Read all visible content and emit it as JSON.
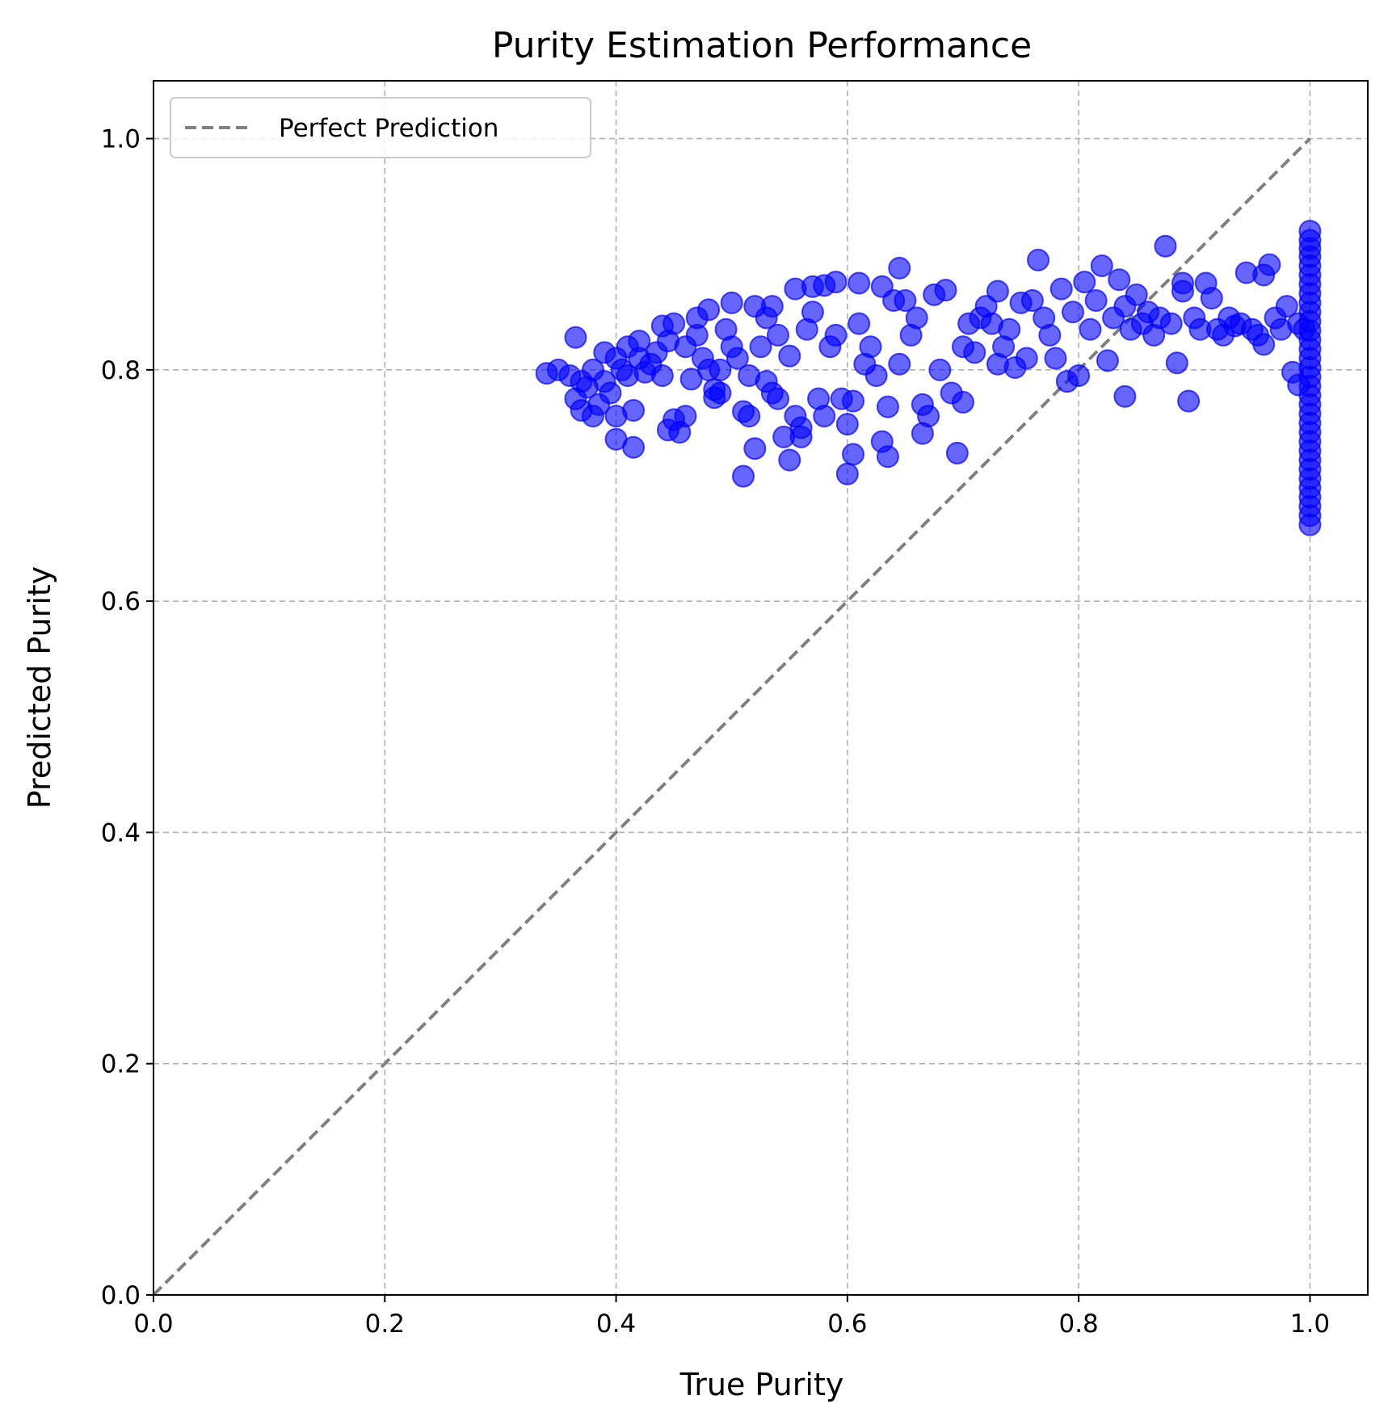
{
  "chart_data": {
    "type": "scatter",
    "title": "Purity Estimation Performance",
    "xlabel": "True Purity",
    "ylabel": "Predicted Purity",
    "xlim": [
      0.0,
      1.05
    ],
    "ylim": [
      0.0,
      1.05
    ],
    "xticks": [
      "0.0",
      "0.2",
      "0.4",
      "0.6",
      "0.8",
      "1.0"
    ],
    "yticks": [
      "0.0",
      "0.2",
      "0.4",
      "0.6",
      "0.8",
      "1.0"
    ],
    "grid": true,
    "legend_position": "top-left",
    "reference_line": {
      "name": "Perfect Prediction",
      "from": [
        0,
        0
      ],
      "to": [
        1,
        1
      ],
      "color": "#808080",
      "style": "dashed"
    },
    "point_color": "#0000ff",
    "point_alpha": 0.6,
    "points": [
      [
        0.34,
        0.797
      ],
      [
        0.35,
        0.8
      ],
      [
        0.36,
        0.795
      ],
      [
        0.365,
        0.828
      ],
      [
        0.365,
        0.775
      ],
      [
        0.37,
        0.765
      ],
      [
        0.37,
        0.79
      ],
      [
        0.375,
        0.785
      ],
      [
        0.38,
        0.8
      ],
      [
        0.38,
        0.76
      ],
      [
        0.385,
        0.77
      ],
      [
        0.39,
        0.79
      ],
      [
        0.39,
        0.815
      ],
      [
        0.395,
        0.78
      ],
      [
        0.4,
        0.81
      ],
      [
        0.4,
        0.76
      ],
      [
        0.4,
        0.74
      ],
      [
        0.405,
        0.8
      ],
      [
        0.41,
        0.82
      ],
      [
        0.41,
        0.795
      ],
      [
        0.415,
        0.765
      ],
      [
        0.415,
        0.733
      ],
      [
        0.42,
        0.81
      ],
      [
        0.42,
        0.825
      ],
      [
        0.425,
        0.798
      ],
      [
        0.43,
        0.805
      ],
      [
        0.435,
        0.815
      ],
      [
        0.44,
        0.795
      ],
      [
        0.44,
        0.838
      ],
      [
        0.445,
        0.748
      ],
      [
        0.445,
        0.825
      ],
      [
        0.45,
        0.84
      ],
      [
        0.45,
        0.757
      ],
      [
        0.455,
        0.746
      ],
      [
        0.46,
        0.76
      ],
      [
        0.46,
        0.82
      ],
      [
        0.465,
        0.792
      ],
      [
        0.47,
        0.83
      ],
      [
        0.47,
        0.845
      ],
      [
        0.475,
        0.81
      ],
      [
        0.48,
        0.852
      ],
      [
        0.48,
        0.8
      ],
      [
        0.485,
        0.783
      ],
      [
        0.485,
        0.776
      ],
      [
        0.49,
        0.8
      ],
      [
        0.49,
        0.78
      ],
      [
        0.495,
        0.835
      ],
      [
        0.5,
        0.858
      ],
      [
        0.5,
        0.82
      ],
      [
        0.505,
        0.81
      ],
      [
        0.51,
        0.764
      ],
      [
        0.51,
        0.708
      ],
      [
        0.515,
        0.76
      ],
      [
        0.515,
        0.795
      ],
      [
        0.52,
        0.855
      ],
      [
        0.52,
        0.732
      ],
      [
        0.525,
        0.82
      ],
      [
        0.53,
        0.845
      ],
      [
        0.53,
        0.79
      ],
      [
        0.535,
        0.855
      ],
      [
        0.535,
        0.78
      ],
      [
        0.54,
        0.83
      ],
      [
        0.54,
        0.775
      ],
      [
        0.545,
        0.742
      ],
      [
        0.55,
        0.722
      ],
      [
        0.55,
        0.812
      ],
      [
        0.555,
        0.87
      ],
      [
        0.555,
        0.76
      ],
      [
        0.56,
        0.742
      ],
      [
        0.56,
        0.75
      ],
      [
        0.565,
        0.835
      ],
      [
        0.57,
        0.85
      ],
      [
        0.57,
        0.872
      ],
      [
        0.575,
        0.775
      ],
      [
        0.58,
        0.76
      ],
      [
        0.58,
        0.873
      ],
      [
        0.585,
        0.82
      ],
      [
        0.59,
        0.83
      ],
      [
        0.59,
        0.876
      ],
      [
        0.595,
        0.775
      ],
      [
        0.6,
        0.753
      ],
      [
        0.6,
        0.71
      ],
      [
        0.605,
        0.727
      ],
      [
        0.605,
        0.773
      ],
      [
        0.61,
        0.875
      ],
      [
        0.61,
        0.84
      ],
      [
        0.615,
        0.805
      ],
      [
        0.62,
        0.82
      ],
      [
        0.625,
        0.795
      ],
      [
        0.63,
        0.738
      ],
      [
        0.63,
        0.872
      ],
      [
        0.635,
        0.725
      ],
      [
        0.635,
        0.768
      ],
      [
        0.64,
        0.86
      ],
      [
        0.645,
        0.888
      ],
      [
        0.645,
        0.805
      ],
      [
        0.65,
        0.86
      ],
      [
        0.655,
        0.83
      ],
      [
        0.66,
        0.845
      ],
      [
        0.665,
        0.77
      ],
      [
        0.665,
        0.745
      ],
      [
        0.67,
        0.76
      ],
      [
        0.675,
        0.865
      ],
      [
        0.68,
        0.8
      ],
      [
        0.685,
        0.869
      ],
      [
        0.69,
        0.78
      ],
      [
        0.695,
        0.728
      ],
      [
        0.7,
        0.772
      ],
      [
        0.7,
        0.82
      ],
      [
        0.705,
        0.84
      ],
      [
        0.71,
        0.815
      ],
      [
        0.715,
        0.845
      ],
      [
        0.72,
        0.855
      ],
      [
        0.725,
        0.84
      ],
      [
        0.73,
        0.868
      ],
      [
        0.73,
        0.805
      ],
      [
        0.735,
        0.82
      ],
      [
        0.74,
        0.835
      ],
      [
        0.745,
        0.802
      ],
      [
        0.75,
        0.858
      ],
      [
        0.755,
        0.81
      ],
      [
        0.76,
        0.86
      ],
      [
        0.765,
        0.895
      ],
      [
        0.77,
        0.845
      ],
      [
        0.775,
        0.83
      ],
      [
        0.78,
        0.81
      ],
      [
        0.785,
        0.87
      ],
      [
        0.79,
        0.79
      ],
      [
        0.795,
        0.85
      ],
      [
        0.8,
        0.795
      ],
      [
        0.805,
        0.876
      ],
      [
        0.81,
        0.835
      ],
      [
        0.815,
        0.86
      ],
      [
        0.82,
        0.89
      ],
      [
        0.825,
        0.808
      ],
      [
        0.83,
        0.845
      ],
      [
        0.835,
        0.878
      ],
      [
        0.84,
        0.777
      ],
      [
        0.84,
        0.855
      ],
      [
        0.845,
        0.835
      ],
      [
        0.85,
        0.865
      ],
      [
        0.855,
        0.84
      ],
      [
        0.86,
        0.85
      ],
      [
        0.865,
        0.83
      ],
      [
        0.87,
        0.845
      ],
      [
        0.875,
        0.907
      ],
      [
        0.88,
        0.84
      ],
      [
        0.885,
        0.806
      ],
      [
        0.89,
        0.868
      ],
      [
        0.89,
        0.875
      ],
      [
        0.895,
        0.773
      ],
      [
        0.9,
        0.845
      ],
      [
        0.905,
        0.835
      ],
      [
        0.91,
        0.875
      ],
      [
        0.915,
        0.862
      ],
      [
        0.92,
        0.835
      ],
      [
        0.925,
        0.83
      ],
      [
        0.93,
        0.845
      ],
      [
        0.935,
        0.838
      ],
      [
        0.94,
        0.84
      ],
      [
        0.945,
        0.884
      ],
      [
        0.95,
        0.835
      ],
      [
        0.955,
        0.83
      ],
      [
        0.96,
        0.822
      ],
      [
        0.96,
        0.882
      ],
      [
        0.965,
        0.891
      ],
      [
        0.97,
        0.845
      ],
      [
        0.975,
        0.835
      ],
      [
        0.98,
        0.855
      ],
      [
        0.985,
        0.798
      ],
      [
        0.99,
        0.787
      ],
      [
        0.99,
        0.84
      ],
      [
        0.995,
        0.835
      ],
      [
        1.0,
        0.92
      ],
      [
        1.0,
        0.912
      ],
      [
        1.0,
        0.905
      ],
      [
        1.0,
        0.898
      ],
      [
        1.0,
        0.89
      ],
      [
        1.0,
        0.882
      ],
      [
        1.0,
        0.874
      ],
      [
        1.0,
        0.866
      ],
      [
        1.0,
        0.858
      ],
      [
        1.0,
        0.85
      ],
      [
        1.0,
        0.842
      ],
      [
        1.0,
        0.834
      ],
      [
        1.0,
        0.826
      ],
      [
        1.0,
        0.818
      ],
      [
        1.0,
        0.81
      ],
      [
        1.0,
        0.802
      ],
      [
        1.0,
        0.794
      ],
      [
        1.0,
        0.786
      ],
      [
        1.0,
        0.778
      ],
      [
        1.0,
        0.77
      ],
      [
        1.0,
        0.762
      ],
      [
        1.0,
        0.754
      ],
      [
        1.0,
        0.746
      ],
      [
        1.0,
        0.738
      ],
      [
        1.0,
        0.73
      ],
      [
        1.0,
        0.722
      ],
      [
        1.0,
        0.714
      ],
      [
        1.0,
        0.706
      ],
      [
        1.0,
        0.698
      ],
      [
        1.0,
        0.69
      ],
      [
        1.0,
        0.682
      ],
      [
        1.0,
        0.674
      ],
      [
        1.0,
        0.666
      ]
    ]
  }
}
